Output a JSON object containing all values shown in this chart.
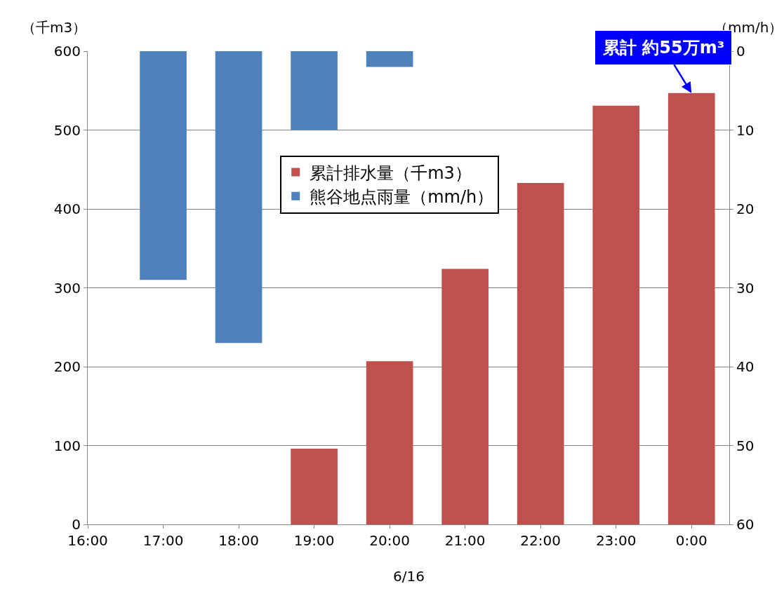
{
  "chart_data": {
    "type": "bar",
    "xlabel": "6/16",
    "ylabel": "（千m3）",
    "y2label": "（mm/h）",
    "categories": [
      "16:00",
      "17:00",
      "18:00",
      "19:00",
      "20:00",
      "21:00",
      "22:00",
      "23:00",
      "0:00"
    ],
    "series": [
      {
        "name": "累計排水量（千m3）",
        "color": "#c0504d",
        "values": [
          null,
          null,
          null,
          96,
          207,
          324,
          433,
          531,
          547
        ]
      },
      {
        "name": "熊谷地点雨量（mm/h）",
        "color": "#4f81bd",
        "axis": "y2",
        "values": [
          null,
          29,
          37,
          10,
          2,
          null,
          null,
          null,
          null
        ]
      }
    ],
    "ylim": [
      0,
      600
    ],
    "yticks": [
      0,
      100,
      200,
      300,
      400,
      500,
      600
    ],
    "y2lim": [
      60,
      0
    ],
    "y2ticks": [
      0,
      10,
      20,
      30,
      40,
      50,
      60
    ],
    "annotations": [
      {
        "text": "累計 約55万m³",
        "x": "0:00",
        "y": 547
      }
    ],
    "grid": "y",
    "legend": "center"
  }
}
